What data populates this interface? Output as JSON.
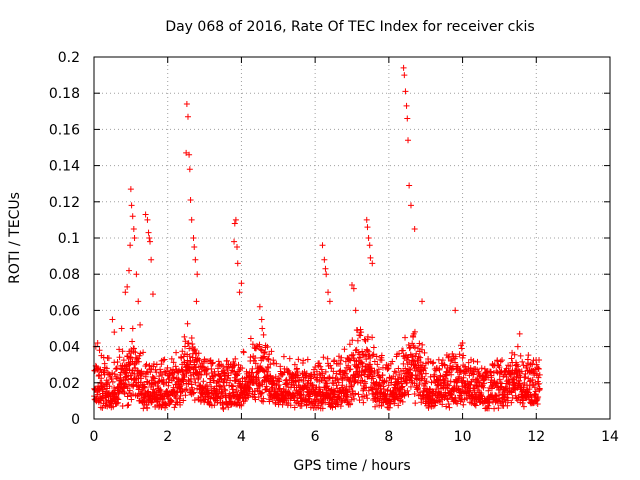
{
  "chart_data": {
    "type": "scatter",
    "title": "Day 068 of 2016, Rate Of TEC Index for receiver ckis",
    "xlabel": "GPS time / hours",
    "ylabel": "ROTI / TECUs",
    "xlim": [
      0,
      14
    ],
    "ylim": [
      0,
      0.2
    ],
    "xticks": [
      0,
      2,
      4,
      6,
      8,
      10,
      12,
      14
    ],
    "xtick_labels": [
      "0",
      "2",
      "4",
      "6",
      "8",
      "10",
      "12",
      "14"
    ],
    "yticks": [
      0,
      0.02,
      0.04,
      0.06,
      0.08,
      0.1,
      0.12,
      0.14,
      0.16,
      0.18,
      0.2
    ],
    "ytick_labels": [
      "0",
      "0.02",
      "0.04",
      "0.06",
      "0.08",
      "0.1",
      "0.12",
      "0.14",
      "0.16",
      "0.18",
      "0.2"
    ],
    "grid": true,
    "marker": "+",
    "color": "#ff0000",
    "series": [
      {
        "name": "ROTI",
        "time_span_hours": [
          0,
          12.1
        ],
        "baseline_range": [
          0.005,
          0.03
        ],
        "notes": "dense background scatter of many points; listed values are the distinct excursions",
        "x": [
          0.05,
          0.1,
          0.15,
          0.2,
          0.5,
          0.55,
          0.75,
          0.85,
          0.9,
          0.95,
          0.98,
          1.0,
          1.02,
          1.05,
          1.08,
          1.1,
          1.15,
          1.2,
          1.25,
          1.4,
          1.45,
          1.48,
          1.5,
          1.52,
          1.55,
          1.6,
          2.5,
          2.52,
          2.55,
          2.58,
          2.6,
          2.62,
          2.65,
          2.7,
          2.72,
          2.75,
          2.78,
          2.8,
          3.8,
          3.82,
          3.85,
          3.88,
          3.9,
          3.95,
          4.0,
          4.5,
          4.55,
          6.2,
          6.25,
          6.28,
          6.3,
          6.35,
          6.4,
          7.0,
          7.05,
          7.1,
          7.4,
          7.42,
          7.45,
          7.48,
          7.5,
          7.55,
          8.4,
          8.42,
          8.45,
          8.48,
          8.5,
          8.52,
          8.55,
          8.6,
          8.7,
          8.9,
          9.8,
          10.0,
          11.5,
          11.55
        ],
        "y": [
          0.04,
          0.042,
          0.038,
          0.035,
          0.055,
          0.048,
          0.05,
          0.07,
          0.073,
          0.082,
          0.096,
          0.127,
          0.118,
          0.112,
          0.105,
          0.1,
          0.08,
          0.065,
          0.052,
          0.113,
          0.11,
          0.103,
          0.1,
          0.098,
          0.088,
          0.069,
          0.147,
          0.174,
          0.167,
          0.146,
          0.138,
          0.121,
          0.11,
          0.1,
          0.095,
          0.088,
          0.065,
          0.08,
          0.098,
          0.108,
          0.11,
          0.095,
          0.086,
          0.07,
          0.075,
          0.062,
          0.055,
          0.096,
          0.088,
          0.083,
          0.08,
          0.07,
          0.065,
          0.074,
          0.072,
          0.06,
          0.11,
          0.106,
          0.1,
          0.096,
          0.089,
          0.086,
          0.194,
          0.19,
          0.181,
          0.173,
          0.166,
          0.154,
          0.129,
          0.118,
          0.105,
          0.065,
          0.06,
          0.042,
          0.04,
          0.047
        ]
      }
    ]
  }
}
